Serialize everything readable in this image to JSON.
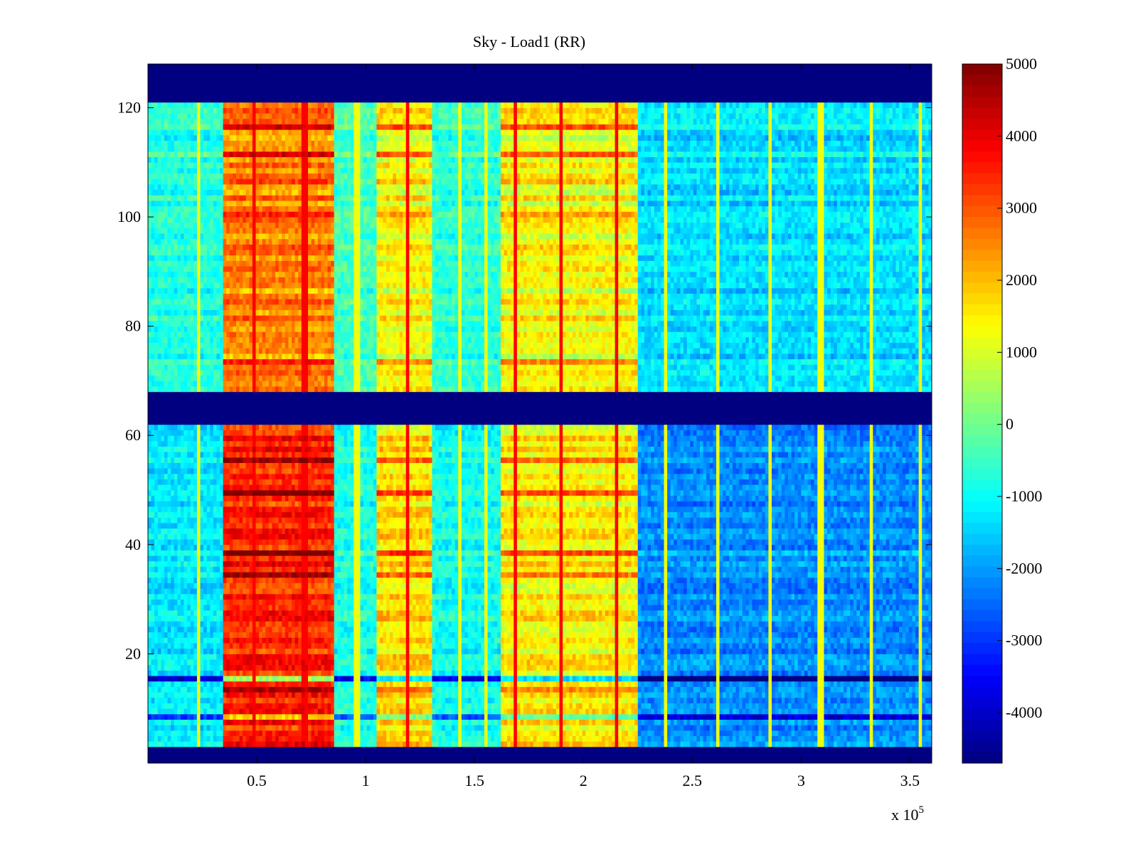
{
  "chart_data": {
    "type": "heatmap",
    "title": "Sky - Load1 (RR)",
    "xlabel": "",
    "ylabel": "",
    "x_multiplier_label": "x 10",
    "x_multiplier_exponent": "5",
    "xlim": [
      0.0,
      3.6
    ],
    "ylim": [
      0,
      128
    ],
    "xticks": [
      0.5,
      1,
      1.5,
      2,
      2.5,
      3,
      3.5
    ],
    "xtick_labels": [
      "0.5",
      "1",
      "1.5",
      "2",
      "2.5",
      "3",
      "3.5"
    ],
    "yticks": [
      20,
      40,
      60,
      80,
      100,
      120
    ],
    "ytick_labels": [
      "20",
      "40",
      "60",
      "80",
      "100",
      "120"
    ],
    "colormap": "jet",
    "clim": [
      -4700,
      5000
    ],
    "colorbar_ticks": [
      5000,
      4000,
      3000,
      2000,
      1000,
      0,
      -1000,
      -2000,
      -3000,
      -4000
    ],
    "colorbar_tick_labels": [
      "5000",
      "4000",
      "3000",
      "2000",
      "1000",
      "0",
      "-1000",
      "-2000",
      "-3000",
      "-4000"
    ],
    "masked_channel_ranges": [
      [
        0,
        3
      ],
      [
        62,
        68
      ],
      [
        121,
        128
      ]
    ],
    "masked_value": -4700,
    "time_segments": [
      {
        "x_start": 0.0,
        "x_end": 0.35,
        "upper_band_level": -800,
        "lower_band_level": -1300
      },
      {
        "x_start": 0.35,
        "x_end": 0.85,
        "upper_band_level": 2500,
        "lower_band_level": 3400
      },
      {
        "x_start": 0.85,
        "x_end": 1.05,
        "upper_band_level": -500,
        "lower_band_level": -900
      },
      {
        "x_start": 1.05,
        "x_end": 1.3,
        "upper_band_level": 1300,
        "lower_band_level": 1600
      },
      {
        "x_start": 1.3,
        "x_end": 1.62,
        "upper_band_level": -700,
        "lower_band_level": -1000
      },
      {
        "x_start": 1.62,
        "x_end": 2.25,
        "upper_band_level": 1300,
        "lower_band_level": 1400
      },
      {
        "x_start": 2.25,
        "x_end": 3.6,
        "upper_band_level": -1400,
        "lower_band_level": -2200
      }
    ],
    "spike_times": [
      0.23,
      0.49,
      0.72,
      0.96,
      1.19,
      1.43,
      1.55,
      1.69,
      1.9,
      2.15,
      2.38,
      2.62,
      2.86,
      3.09,
      3.32,
      3.55
    ],
    "spike_level": 3800,
    "strong_channels": [
      {
        "channel": 116,
        "delta": 1500
      },
      {
        "channel": 111,
        "delta": 1300
      },
      {
        "channel": 106,
        "delta": 800
      },
      {
        "channel": 100,
        "delta": 900
      },
      {
        "channel": 73,
        "delta": 900
      },
      {
        "channel": 59,
        "delta": 1200
      },
      {
        "channel": 55,
        "delta": 1500
      },
      {
        "channel": 49,
        "delta": 2200
      },
      {
        "channel": 38,
        "delta": 1400
      },
      {
        "channel": 34,
        "delta": 1400
      },
      {
        "channel": 15,
        "delta": -2500
      },
      {
        "channel": 13,
        "delta": 1500
      },
      {
        "channel": 8,
        "delta": -1800
      }
    ]
  }
}
